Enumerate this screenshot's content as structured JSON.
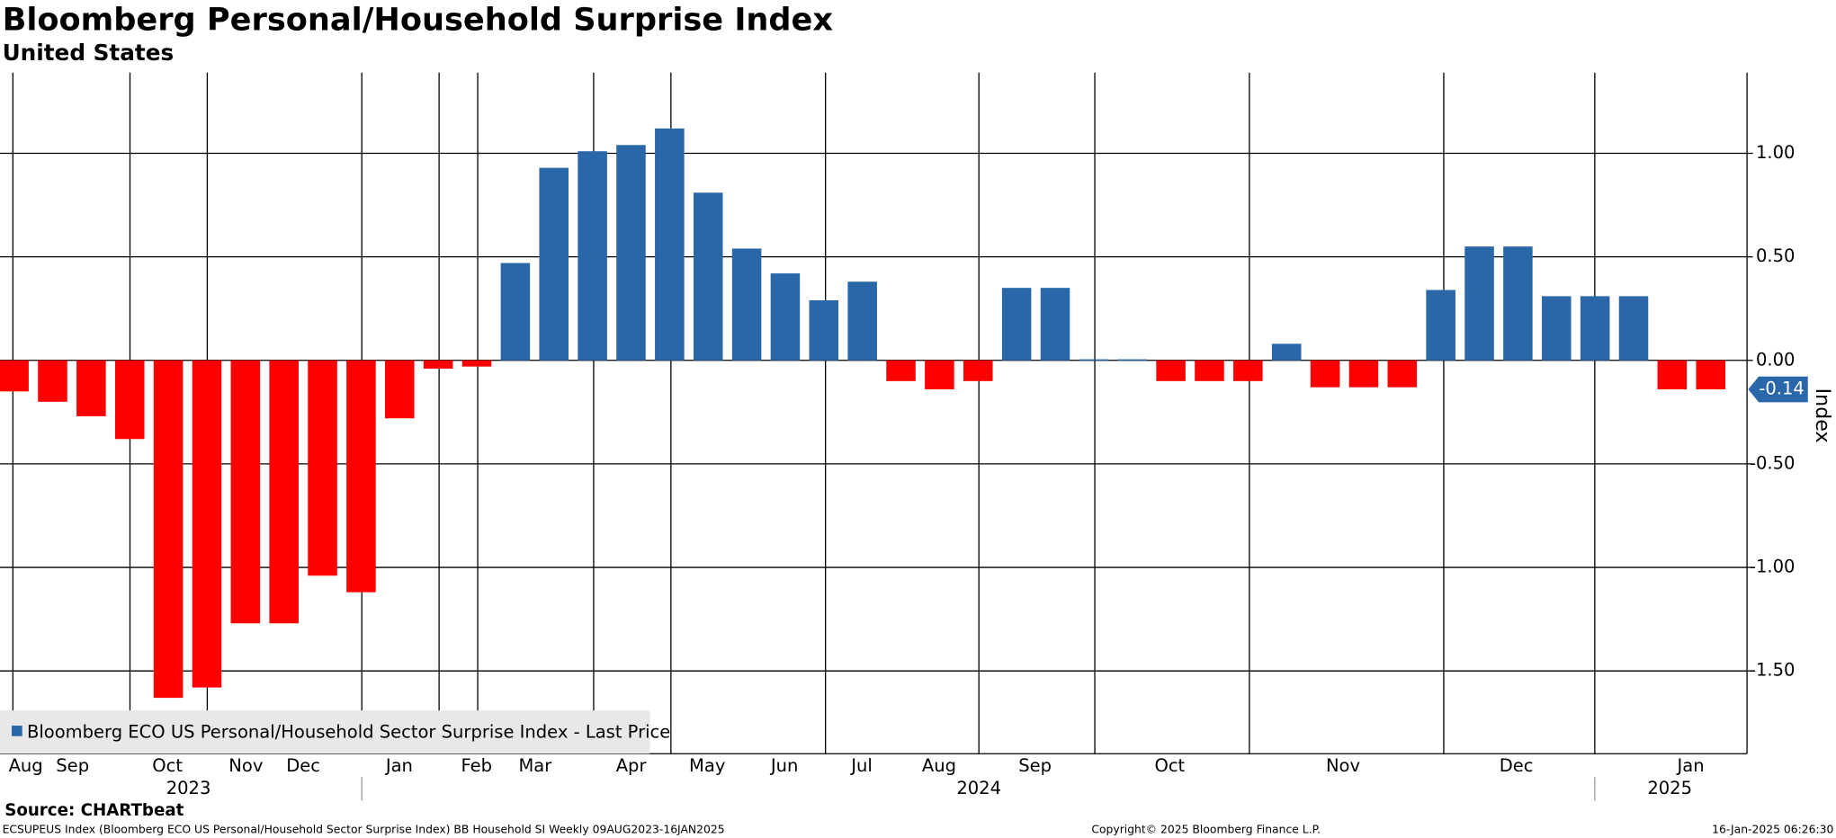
{
  "chart_data": {
    "type": "bar",
    "title": "Bloomberg Personal/Household Surprise Index",
    "subtitle": "United States",
    "y_axis_label": "Index",
    "series": [
      {
        "name": "Bloomberg ECO US Personal/Household Sector Surprise Index - Last Price",
        "color": "#2a67a8",
        "negative_color": "#ff0000",
        "values": [
          -0.15,
          -0.2,
          -0.27,
          -0.38,
          -1.63,
          -1.58,
          -1.27,
          -1.27,
          -1.04,
          -1.12,
          -0.28,
          -0.04,
          -0.03,
          0.47,
          0.93,
          1.01,
          1.04,
          1.12,
          0.81,
          0.54,
          0.42,
          0.29,
          0.38,
          -0.1,
          -0.14,
          -0.1,
          0.35,
          0.35,
          0.005,
          0.005,
          -0.1,
          -0.1,
          -0.1,
          0.08,
          -0.13,
          -0.13,
          -0.13,
          0.34,
          0.55,
          0.55,
          0.31,
          0.31,
          0.31,
          -0.14,
          -0.14
        ]
      }
    ],
    "last_price": -0.14,
    "months": [
      "Aug",
      "Sep",
      "Oct",
      "Nov",
      "Dec",
      "Jan",
      "Feb",
      "Mar",
      "Apr",
      "May",
      "Jun",
      "Jul",
      "Aug",
      "Sep",
      "Oct",
      "Nov",
      "Dec",
      "Jan"
    ],
    "years": [
      "2023",
      "2024",
      "2025"
    ],
    "ylim": [
      -1.9,
      1.39
    ],
    "yticks": [
      {
        "value": -1.5,
        "label": "-1.50"
      },
      {
        "value": -1,
        "label": "-1.00"
      },
      {
        "value": -0.5,
        "label": "-0.50"
      },
      {
        "value": 0,
        "label": "0.00"
      },
      {
        "value": 0.5,
        "label": "0.50"
      },
      {
        "value": 1,
        "label": "1.00"
      }
    ],
    "grid": true,
    "source": "Source: CHARTbeat",
    "footer": {
      "left": "ECSUPEUS Index (Bloomberg ECO US Personal/Household Sector Surprise Index) BB Household SI  Weekly 09AUG2023-16JAN2025",
      "center": "Copyright© 2025 Bloomberg Finance L.P.",
      "right": "16-Jan-2025 06:26:30"
    }
  }
}
